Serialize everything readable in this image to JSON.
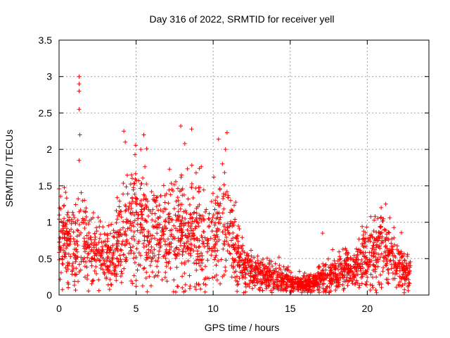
{
  "chart_data": {
    "type": "scatter",
    "title": "Day 316 of 2022, SRMTID for receiver yell",
    "xlabel": "GPS time / hours",
    "ylabel": "SRMTID / TECUs",
    "xlim": [
      0,
      24
    ],
    "ylim": [
      0,
      3.5
    ],
    "grid": true,
    "marker": "+",
    "colors": {
      "marker": "#ff0000",
      "grid": "#a0a0a0",
      "axis": "#000000"
    },
    "x_ticks": [
      {
        "value": 0,
        "label": "0"
      },
      {
        "value": 5,
        "label": "5"
      },
      {
        "value": 10,
        "label": "10"
      },
      {
        "value": 15,
        "label": "15"
      },
      {
        "value": 20,
        "label": "20"
      }
    ],
    "y_ticks": [
      {
        "value": 0,
        "label": "0"
      },
      {
        "value": 0.5,
        "label": "0.5"
      },
      {
        "value": 1,
        "label": "1"
      },
      {
        "value": 1.5,
        "label": "1.5"
      },
      {
        "value": 2,
        "label": "2"
      },
      {
        "value": 2.5,
        "label": "2.5"
      },
      {
        "value": 3,
        "label": "3"
      },
      {
        "value": 3.5,
        "label": "3.5"
      }
    ],
    "series": [
      {
        "name": "SRMTID",
        "note": "estimated median trend of the point cloud and notable outliers",
        "trend": [
          [
            0.0,
            0.85
          ],
          [
            0.5,
            0.75
          ],
          [
            1.0,
            0.65
          ],
          [
            1.5,
            0.8
          ],
          [
            2.0,
            0.65
          ],
          [
            2.5,
            0.6
          ],
          [
            3.0,
            0.5
          ],
          [
            3.5,
            0.55
          ],
          [
            4.0,
            0.75
          ],
          [
            4.5,
            1.0
          ],
          [
            5.0,
            1.05
          ],
          [
            5.5,
            1.0
          ],
          [
            6.0,
            0.85
          ],
          [
            6.5,
            0.9
          ],
          [
            7.0,
            0.85
          ],
          [
            7.5,
            0.9
          ],
          [
            8.0,
            0.85
          ],
          [
            8.5,
            0.9
          ],
          [
            9.0,
            0.8
          ],
          [
            9.5,
            0.7
          ],
          [
            10.0,
            0.8
          ],
          [
            10.5,
            1.0
          ],
          [
            11.0,
            0.8
          ],
          [
            11.5,
            0.55
          ],
          [
            12.0,
            0.4
          ],
          [
            12.5,
            0.35
          ],
          [
            13.0,
            0.3
          ],
          [
            13.5,
            0.28
          ],
          [
            14.0,
            0.26
          ],
          [
            14.5,
            0.22
          ],
          [
            15.0,
            0.18
          ],
          [
            15.5,
            0.14
          ],
          [
            16.0,
            0.15
          ],
          [
            16.5,
            0.18
          ],
          [
            17.0,
            0.25
          ],
          [
            17.5,
            0.3
          ],
          [
            18.0,
            0.32
          ],
          [
            18.5,
            0.35
          ],
          [
            19.0,
            0.35
          ],
          [
            19.5,
            0.42
          ],
          [
            20.0,
            0.55
          ],
          [
            20.5,
            0.6
          ],
          [
            21.0,
            0.65
          ],
          [
            21.5,
            0.55
          ],
          [
            22.0,
            0.42
          ],
          [
            22.5,
            0.3
          ],
          [
            22.8,
            0.28
          ]
        ],
        "highlights": [
          [
            1.3,
            3.0
          ],
          [
            1.3,
            2.9
          ],
          [
            1.3,
            2.8
          ],
          [
            1.3,
            2.55
          ],
          [
            1.35,
            2.2
          ],
          [
            1.3,
            1.85
          ],
          [
            4.2,
            2.25
          ],
          [
            4.3,
            2.1
          ],
          [
            5.5,
            2.2
          ],
          [
            5.3,
            2.0
          ],
          [
            7.9,
            2.32
          ],
          [
            8.6,
            2.28
          ],
          [
            10.9,
            2.23
          ],
          [
            10.8,
            2.0
          ],
          [
            10.6,
            1.8
          ],
          [
            17.1,
            0.85
          ],
          [
            21.2,
            1.25
          ],
          [
            20.9,
            1.2
          ],
          [
            5.0,
            0.12
          ],
          [
            5.0,
            0.2
          ],
          [
            8.0,
            0.1
          ]
        ]
      }
    ]
  }
}
